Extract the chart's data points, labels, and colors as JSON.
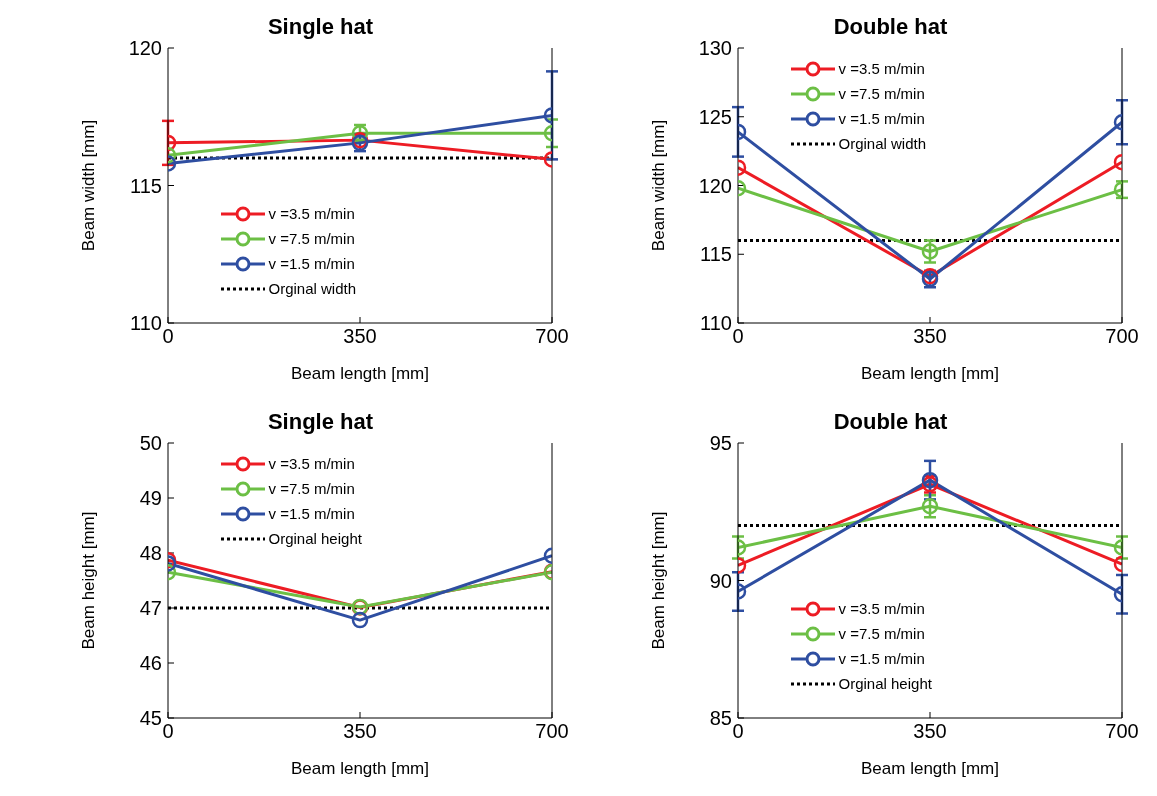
{
  "chart_data": [
    {
      "type": "line",
      "title": "Single hat",
      "xlabel": "Beam length [mm]",
      "ylabel": "Beam width [mm]",
      "x": [
        0,
        350,
        700
      ],
      "xlim": [
        0,
        700
      ],
      "xticks": [
        0,
        350,
        700
      ],
      "ylim": [
        110,
        120
      ],
      "yticks": [
        110,
        115,
        120
      ],
      "grid": false,
      "legend": "bottom",
      "marker": "circle",
      "line_style": "solid",
      "series": [
        {
          "name": "v =3.5 m/min",
          "color": "#ed1c24",
          "values": [
            116.55,
            116.65,
            115.95
          ],
          "errors": [
            0.8,
            null,
            null
          ]
        },
        {
          "name": "v =7.5 m/min",
          "color": "#6cbf45",
          "values": [
            116.1,
            116.9,
            116.9
          ],
          "errors": [
            null,
            0.3,
            0.5
          ]
        },
        {
          "name": "v =1.5 m/min",
          "color": "#2e4ea1",
          "values": [
            115.8,
            116.55,
            117.55
          ],
          "errors": [
            null,
            0.3,
            1.6
          ]
        }
      ],
      "ref_lines": [
        {
          "axis": "y",
          "value": 116,
          "label": "Orginal width",
          "color": "#000000",
          "line_style": "dotted"
        }
      ]
    },
    {
      "type": "line",
      "title": "Double hat",
      "xlabel": "Beam length [mm]",
      "ylabel": "Beam width [mm]",
      "x": [
        0,
        350,
        700
      ],
      "xlim": [
        0,
        700
      ],
      "xticks": [
        0,
        350,
        700
      ],
      "ylim": [
        110,
        130
      ],
      "yticks": [
        110,
        115,
        120,
        125,
        130
      ],
      "grid": false,
      "legend": "top",
      "marker": "circle",
      "line_style": "solid",
      "series": [
        {
          "name": "v =3.5 m/min",
          "color": "#ed1c24",
          "values": [
            121.3,
            113.4,
            121.7
          ],
          "errors": [
            null,
            null,
            null
          ]
        },
        {
          "name": "v =7.5 m/min",
          "color": "#6cbf45",
          "values": [
            119.8,
            115.2,
            119.7
          ],
          "errors": [
            null,
            0.8,
            0.6
          ]
        },
        {
          "name": "v =1.5 m/min",
          "color": "#2e4ea1",
          "values": [
            123.9,
            113.2,
            124.6
          ],
          "errors": [
            1.8,
            0.6,
            1.6
          ]
        }
      ],
      "ref_lines": [
        {
          "axis": "y",
          "value": 116,
          "label": "Orginal width",
          "color": "#000000",
          "line_style": "dotted"
        }
      ]
    },
    {
      "type": "line",
      "title": "Single hat",
      "xlabel": "Beam length [mm]",
      "ylabel": "Beam height [mm]",
      "x": [
        0,
        350,
        700
      ],
      "xlim": [
        0,
        700
      ],
      "xticks": [
        0,
        350,
        700
      ],
      "ylim": [
        45,
        50
      ],
      "yticks": [
        45,
        46,
        47,
        48,
        49,
        50
      ],
      "grid": false,
      "legend": "top",
      "marker": "circle",
      "line_style": "solid",
      "series": [
        {
          "name": "v =3.5 m/min",
          "color": "#ed1c24",
          "values": [
            47.87,
            47.01,
            47.66
          ]
        },
        {
          "name": "v =7.5 m/min",
          "color": "#6cbf45",
          "values": [
            47.65,
            47.02,
            47.65
          ]
        },
        {
          "name": "v =1.5 m/min",
          "color": "#2e4ea1",
          "values": [
            47.81,
            46.78,
            47.95
          ]
        }
      ],
      "ref_lines": [
        {
          "axis": "y",
          "value": 47,
          "label": "Orginal height",
          "color": "#000000",
          "line_style": "dotted"
        }
      ]
    },
    {
      "type": "line",
      "title": "Double hat",
      "xlabel": "Beam length [mm]",
      "ylabel": "Beam height [mm]",
      "x": [
        0,
        350,
        700
      ],
      "xlim": [
        0,
        700
      ],
      "xticks": [
        0,
        350,
        700
      ],
      "ylim": [
        85,
        95
      ],
      "yticks": [
        85,
        90,
        95
      ],
      "grid": false,
      "legend": "bottom",
      "marker": "circle",
      "line_style": "solid",
      "series": [
        {
          "name": "v =3.5 m/min",
          "color": "#ed1c24",
          "values": [
            90.55,
            93.5,
            90.6
          ],
          "errors": [
            null,
            0.3,
            null
          ]
        },
        {
          "name": "v =7.5 m/min",
          "color": "#6cbf45",
          "values": [
            91.2,
            92.7,
            91.2
          ],
          "errors": [
            0.4,
            0.4,
            0.4
          ]
        },
        {
          "name": "v =1.5 m/min",
          "color": "#2e4ea1",
          "values": [
            89.6,
            93.65,
            89.5
          ],
          "errors": [
            0.7,
            0.7,
            0.7
          ]
        }
      ],
      "ref_lines": [
        {
          "axis": "y",
          "value": 92,
          "label": "Orginal height",
          "color": "#000000",
          "line_style": "dotted"
        }
      ]
    }
  ]
}
